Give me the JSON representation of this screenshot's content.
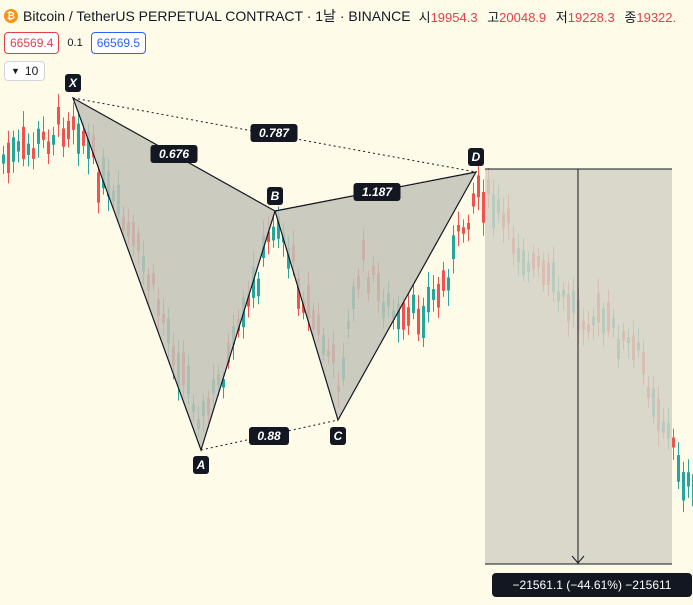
{
  "header": {
    "coin_icon": "bitcoin-icon",
    "title": "Bitcoin / TetherUS PERPETUAL CONTRACT · 1날 · BINANCE",
    "open_label": "시",
    "open_value": "19954.3",
    "high_label": "고",
    "high_value": "20048.9",
    "low_label": "저",
    "low_value": "19228.3",
    "close_label": "종",
    "close_value": "19322.",
    "down_color": "#e5404a"
  },
  "trade": {
    "sell_price": "66569.4",
    "spread": "0.1",
    "buy_price": "66569.5"
  },
  "indicator_toggle": {
    "count": "10",
    "icon": "chevron-down-icon"
  },
  "chart_data": {
    "type": "candlestick",
    "title": "",
    "colors": {
      "up": "#26a69a",
      "down": "#ef5350",
      "pattern_fill": "#c3c2b8",
      "measure_fill": "#d3d1c4"
    },
    "pattern": {
      "points": [
        {
          "label": "X"
        },
        {
          "label": "A"
        },
        {
          "label": "B"
        },
        {
          "label": "C"
        },
        {
          "label": "D"
        }
      ],
      "ratios": [
        {
          "label": "0.676",
          "between": "XA-AB"
        },
        {
          "label": "0.787",
          "between": "XB-XD"
        },
        {
          "label": "1.187",
          "between": "BC-CD"
        },
        {
          "label": "0.88",
          "between": "AC"
        }
      ]
    },
    "measure": {
      "label": "−21561.1 (−44.61%) −215611",
      "direction": "down"
    }
  }
}
